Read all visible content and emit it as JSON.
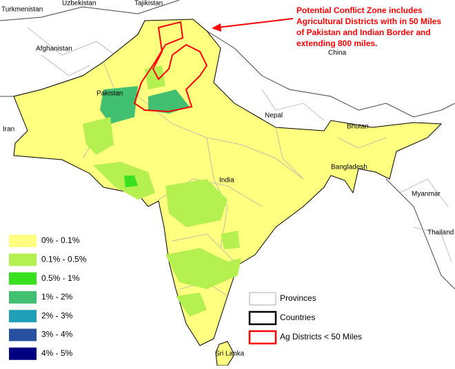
{
  "map": {
    "place_labels": [
      "Turkmenistan",
      "Uzbekistan",
      "Tajikistan",
      "Afghanistan",
      "Pakistan",
      "Iran",
      "China",
      "Nepal",
      "Bhutan",
      "Bangladesh",
      "India",
      "Myanmar",
      "Thailand",
      "Sri Lanka"
    ],
    "annotation": [
      "Potential Conflict Zone includes",
      "Agricultural Districts with in 50 Miles",
      "of Pakistan and Indian Border and",
      "extending 800 miles."
    ],
    "legend": [
      {
        "label": "0% - 0.1%",
        "color": "#ffff80"
      },
      {
        "label": "0.1% - 0.5%",
        "color": "#b4f050"
      },
      {
        "label": "0.5% - 1%",
        "color": "#38e020"
      },
      {
        "label": "1% - 2%",
        "color": "#40c070"
      },
      {
        "label": "2% - 3%",
        "color": "#20a0b8"
      },
      {
        "label": "3% - 4%",
        "color": "#2850a0"
      },
      {
        "label": "4% - 5%",
        "color": "#000080"
      }
    ],
    "boundary_legend": [
      {
        "label": "Provinces",
        "color": "#aaaaaa"
      },
      {
        "label": "Countries",
        "color": "#000000"
      },
      {
        "label": "Ag Districts < 50 Miles",
        "color": "#ff0000"
      }
    ]
  }
}
